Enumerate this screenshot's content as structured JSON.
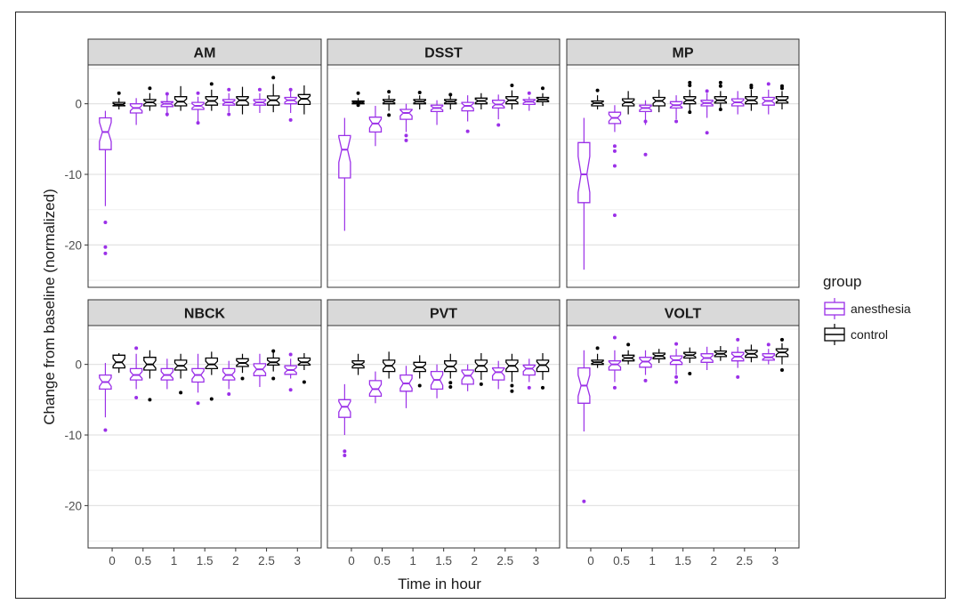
{
  "chart_data": {
    "type": "boxplot",
    "facets": [
      "AM",
      "DSST",
      "MP",
      "NBCK",
      "PVT",
      "VOLT"
    ],
    "x_categories": [
      "0",
      "0.5",
      "1",
      "1.5",
      "2",
      "2.5",
      "3"
    ],
    "xlabel": "Time in hour",
    "ylabel": "Change from baseline (normalized)",
    "y_ticks": [
      0,
      -10,
      -20
    ],
    "ylim": [
      -26,
      5.5
    ],
    "legend": {
      "title": "group",
      "entries": [
        {
          "label": "anesthesia",
          "color": "#9b30e8"
        },
        {
          "label": "control",
          "color": "#000000"
        }
      ]
    },
    "series_colors": {
      "anesthesia": "#9b30e8",
      "control": "#000000"
    },
    "panels": {
      "AM": {
        "anesthesia": [
          {
            "wl": -14.5,
            "q1": -6.5,
            "med": -4.0,
            "q3": -2.0,
            "wh": -1.0,
            "out": [
              -16.8,
              -20.3,
              -21.2
            ]
          },
          {
            "wl": -3.0,
            "q1": -1.3,
            "med": -0.6,
            "q3": 0.0,
            "wh": 0.8,
            "out": []
          },
          {
            "wl": -1.8,
            "q1": -0.4,
            "med": 0.0,
            "q3": 0.3,
            "wh": 1.2,
            "out": [
              -1.5,
              1.4
            ]
          },
          {
            "wl": -2.5,
            "q1": -0.8,
            "med": -0.3,
            "q3": 0.2,
            "wh": 1.0,
            "out": [
              -2.7,
              1.5
            ]
          },
          {
            "wl": -1.2,
            "q1": -0.2,
            "med": 0.2,
            "q3": 0.6,
            "wh": 1.5,
            "out": [
              -1.5,
              2.0
            ]
          },
          {
            "wl": -1.3,
            "q1": -0.2,
            "med": 0.2,
            "q3": 0.6,
            "wh": 1.5,
            "out": [
              2.0
            ]
          },
          {
            "wl": -1.3,
            "q1": 0.0,
            "med": 0.5,
            "q3": 0.9,
            "wh": 1.8,
            "out": [
              -2.3,
              2.0
            ]
          }
        ],
        "control": [
          {
            "wl": -0.8,
            "q1": -0.3,
            "med": -0.1,
            "q3": 0.2,
            "wh": 0.8,
            "out": [
              1.5
            ]
          },
          {
            "wl": -1.0,
            "q1": -0.3,
            "med": 0.2,
            "q3": 0.6,
            "wh": 1.5,
            "out": [
              2.2
            ]
          },
          {
            "wl": -1.0,
            "q1": -0.3,
            "med": 0.3,
            "q3": 1.0,
            "wh": 2.5,
            "out": []
          },
          {
            "wl": -1.0,
            "q1": -0.2,
            "med": 0.4,
            "q3": 1.0,
            "wh": 2.0,
            "out": [
              2.8
            ]
          },
          {
            "wl": -1.5,
            "q1": -0.2,
            "med": 0.5,
            "q3": 1.0,
            "wh": 2.4,
            "out": []
          },
          {
            "wl": -1.2,
            "q1": -0.2,
            "med": 0.5,
            "q3": 1.1,
            "wh": 2.8,
            "out": [
              3.7
            ]
          },
          {
            "wl": -1.5,
            "q1": -0.1,
            "med": 0.7,
            "q3": 1.3,
            "wh": 2.6,
            "out": []
          }
        ]
      },
      "DSST": {
        "anesthesia": [
          {
            "wl": -18.0,
            "q1": -10.5,
            "med": -6.5,
            "q3": -4.5,
            "wh": -2.0,
            "out": []
          },
          {
            "wl": -6.0,
            "q1": -4.0,
            "med": -2.8,
            "q3": -1.9,
            "wh": -0.3,
            "out": []
          },
          {
            "wl": -4.0,
            "q1": -2.2,
            "med": -1.3,
            "q3": -0.8,
            "wh": 0.0,
            "out": [
              -4.5,
              -5.2
            ]
          },
          {
            "wl": -3.0,
            "q1": -1.1,
            "med": -0.6,
            "q3": -0.2,
            "wh": 0.5,
            "out": []
          },
          {
            "wl": -2.5,
            "q1": -1.0,
            "med": -0.3,
            "q3": 0.2,
            "wh": 1.2,
            "out": [
              -3.9
            ]
          },
          {
            "wl": -2.2,
            "q1": -0.6,
            "med": -0.1,
            "q3": 0.5,
            "wh": 1.3,
            "out": [
              -3.0
            ]
          },
          {
            "wl": -1.0,
            "q1": -0.1,
            "med": 0.3,
            "q3": 0.6,
            "wh": 1.0,
            "out": [
              1.5
            ]
          }
        ],
        "control": [
          {
            "wl": -0.3,
            "q1": 0.0,
            "med": 0.2,
            "q3": 0.4,
            "wh": 0.8,
            "out": [
              1.5,
              -0.2
            ]
          },
          {
            "wl": -1.0,
            "q1": 0.0,
            "med": 0.3,
            "q3": 0.6,
            "wh": 1.2,
            "out": [
              1.7,
              -1.6
            ]
          },
          {
            "wl": -0.8,
            "q1": 0.0,
            "med": 0.3,
            "q3": 0.6,
            "wh": 1.2,
            "out": [
              1.6
            ]
          },
          {
            "wl": -0.8,
            "q1": 0.0,
            "med": 0.3,
            "q3": 0.6,
            "wh": 1.2,
            "out": [
              1.3
            ]
          },
          {
            "wl": -0.8,
            "q1": 0.0,
            "med": 0.4,
            "q3": 0.8,
            "wh": 1.5,
            "out": []
          },
          {
            "wl": -0.8,
            "q1": 0.0,
            "med": 0.5,
            "q3": 1.0,
            "wh": 1.9,
            "out": [
              2.6
            ]
          },
          {
            "wl": -0.3,
            "q1": 0.3,
            "med": 0.6,
            "q3": 0.9,
            "wh": 1.5,
            "out": [
              2.2
            ]
          }
        ]
      },
      "MP": {
        "anesthesia": [
          {
            "wl": -23.5,
            "q1": -14.0,
            "med": -10.0,
            "q3": -5.5,
            "wh": -2.0,
            "out": []
          },
          {
            "wl": -4.0,
            "q1": -2.8,
            "med": -2.0,
            "q3": -1.2,
            "wh": -0.2,
            "out": [
              -6.0,
              -6.7,
              -8.8,
              -15.8
            ]
          },
          {
            "wl": -3.0,
            "q1": -1.1,
            "med": -0.6,
            "q3": -0.2,
            "wh": 0.5,
            "out": [
              -2.5,
              -7.2
            ]
          },
          {
            "wl": -2.2,
            "q1": -0.6,
            "med": -0.2,
            "q3": 0.3,
            "wh": 1.2,
            "out": [
              -2.5
            ]
          },
          {
            "wl": -2.0,
            "q1": -0.3,
            "med": 0.1,
            "q3": 0.5,
            "wh": 1.5,
            "out": [
              -4.1,
              1.8
            ]
          },
          {
            "wl": -1.5,
            "q1": -0.3,
            "med": 0.2,
            "q3": 0.7,
            "wh": 1.8,
            "out": []
          },
          {
            "wl": -1.5,
            "q1": -0.2,
            "med": 0.4,
            "q3": 0.9,
            "wh": 2.0,
            "out": [
              2.8
            ]
          }
        ],
        "control": [
          {
            "wl": -0.8,
            "q1": -0.3,
            "med": 0.1,
            "q3": 0.4,
            "wh": 1.2,
            "out": [
              1.9
            ]
          },
          {
            "wl": -1.5,
            "q1": -0.3,
            "med": 0.2,
            "q3": 0.7,
            "wh": 1.8,
            "out": []
          },
          {
            "wl": -1.2,
            "q1": -0.3,
            "med": 0.4,
            "q3": 0.9,
            "wh": 2.0,
            "out": []
          },
          {
            "wl": -1.0,
            "q1": 0.0,
            "med": 0.5,
            "q3": 1.0,
            "wh": 2.0,
            "out": [
              2.6,
              3.0,
              -1.2
            ]
          },
          {
            "wl": -0.8,
            "q1": 0.1,
            "med": 0.5,
            "q3": 1.0,
            "wh": 1.8,
            "out": [
              2.5,
              3.0,
              -0.8
            ]
          },
          {
            "wl": -1.0,
            "q1": 0.0,
            "med": 0.5,
            "q3": 1.0,
            "wh": 2.0,
            "out": [
              2.3,
              2.6
            ]
          },
          {
            "wl": -0.8,
            "q1": 0.1,
            "med": 0.5,
            "q3": 1.0,
            "wh": 1.8,
            "out": [
              2.2,
              2.5
            ]
          }
        ]
      },
      "NBCK": {
        "anesthesia": [
          {
            "wl": -7.5,
            "q1": -3.5,
            "med": -2.5,
            "q3": -1.5,
            "wh": 0.2,
            "out": [
              -9.3
            ]
          },
          {
            "wl": -3.5,
            "q1": -2.2,
            "med": -1.5,
            "q3": -0.6,
            "wh": 1.5,
            "out": [
              2.3,
              -4.7
            ]
          },
          {
            "wl": -3.5,
            "q1": -2.2,
            "med": -1.5,
            "q3": -0.6,
            "wh": 0.8,
            "out": []
          },
          {
            "wl": -4.0,
            "q1": -2.5,
            "med": -1.5,
            "q3": -0.6,
            "wh": 1.5,
            "out": [
              -5.5
            ]
          },
          {
            "wl": -3.5,
            "q1": -2.2,
            "med": -1.5,
            "q3": -0.6,
            "wh": 0.5,
            "out": [
              -4.2
            ]
          },
          {
            "wl": -3.2,
            "q1": -1.6,
            "med": -0.7,
            "q3": 0.1,
            "wh": 1.5,
            "out": []
          },
          {
            "wl": -2.0,
            "q1": -1.4,
            "med": -0.8,
            "q3": -0.2,
            "wh": 0.8,
            "out": [
              -3.6,
              1.4
            ]
          }
        ],
        "control": [
          {
            "wl": -1.2,
            "q1": -0.5,
            "med": 0.3,
            "q3": 1.3,
            "wh": 1.6,
            "out": []
          },
          {
            "wl": -2.0,
            "q1": -0.8,
            "med": 0.0,
            "q3": 1.0,
            "wh": 2.0,
            "out": [
              -5.0
            ]
          },
          {
            "wl": -2.0,
            "q1": -0.8,
            "med": -0.2,
            "q3": 0.6,
            "wh": 1.5,
            "out": [
              -4.0
            ]
          },
          {
            "wl": -1.5,
            "q1": -0.6,
            "med": 0.0,
            "q3": 0.9,
            "wh": 1.8,
            "out": [
              -4.9
            ]
          },
          {
            "wl": -1.2,
            "q1": -0.3,
            "med": 0.2,
            "q3": 0.8,
            "wh": 1.5,
            "out": [
              -2.0
            ]
          },
          {
            "wl": -1.0,
            "q1": -0.1,
            "med": 0.3,
            "q3": 0.9,
            "wh": 1.7,
            "out": [
              1.9,
              -2.0
            ]
          },
          {
            "wl": -0.8,
            "q1": -0.1,
            "med": 0.3,
            "q3": 0.9,
            "wh": 1.6,
            "out": [
              -2.5
            ]
          }
        ]
      },
      "PVT": {
        "anesthesia": [
          {
            "wl": -10.0,
            "q1": -7.5,
            "med": -6.0,
            "q3": -5.0,
            "wh": -2.8,
            "out": [
              -12.3,
              -12.9
            ]
          },
          {
            "wl": -5.5,
            "q1": -4.5,
            "med": -3.5,
            "q3": -2.3,
            "wh": -1.0,
            "out": []
          },
          {
            "wl": -6.2,
            "q1": -3.8,
            "med": -2.7,
            "q3": -1.5,
            "wh": -0.2,
            "out": []
          },
          {
            "wl": -4.8,
            "q1": -3.5,
            "med": -2.2,
            "q3": -1.0,
            "wh": 0.0,
            "out": []
          },
          {
            "wl": -3.8,
            "q1": -2.8,
            "med": -1.6,
            "q3": -0.8,
            "wh": 0.0,
            "out": []
          },
          {
            "wl": -3.5,
            "q1": -2.2,
            "med": -1.1,
            "q3": -0.5,
            "wh": 0.5,
            "out": []
          },
          {
            "wl": -2.5,
            "q1": -1.5,
            "med": -0.6,
            "q3": -0.1,
            "wh": 0.8,
            "out": [
              -3.3
            ]
          }
        ],
        "control": [
          {
            "wl": -1.5,
            "q1": -0.5,
            "med": 0.0,
            "q3": 0.5,
            "wh": 1.5,
            "out": []
          },
          {
            "wl": -2.0,
            "q1": -1.0,
            "med": -0.2,
            "q3": 0.6,
            "wh": 1.8,
            "out": []
          },
          {
            "wl": -2.0,
            "q1": -1.0,
            "med": -0.4,
            "q3": 0.3,
            "wh": 1.3,
            "out": [
              -3.0
            ]
          },
          {
            "wl": -2.0,
            "q1": -1.0,
            "med": -0.3,
            "q3": 0.5,
            "wh": 1.5,
            "out": [
              -2.6,
              -3.2
            ]
          },
          {
            "wl": -2.2,
            "q1": -1.0,
            "med": -0.2,
            "q3": 0.6,
            "wh": 1.6,
            "out": [
              -2.8
            ]
          },
          {
            "wl": -2.5,
            "q1": -1.0,
            "med": -0.2,
            "q3": 0.6,
            "wh": 1.5,
            "out": [
              -3.0,
              -3.8
            ]
          },
          {
            "wl": -2.2,
            "q1": -1.0,
            "med": -0.1,
            "q3": 0.6,
            "wh": 1.6,
            "out": [
              -3.3
            ]
          }
        ]
      },
      "VOLT": {
        "anesthesia": [
          {
            "wl": -9.5,
            "q1": -5.5,
            "med": -3.0,
            "q3": -0.5,
            "wh": 2.0,
            "out": [
              -19.4
            ]
          },
          {
            "wl": -2.5,
            "q1": -0.8,
            "med": 0.0,
            "q3": 0.5,
            "wh": 2.0,
            "out": [
              3.8,
              -3.3
            ]
          },
          {
            "wl": -1.5,
            "q1": -0.4,
            "med": 0.4,
            "q3": 1.0,
            "wh": 2.0,
            "out": [
              -2.3
            ]
          },
          {
            "wl": -1.5,
            "q1": 0.0,
            "med": 0.6,
            "q3": 1.2,
            "wh": 2.2,
            "out": [
              -1.8,
              -2.5,
              2.9
            ]
          },
          {
            "wl": -0.8,
            "q1": 0.3,
            "med": 0.9,
            "q3": 1.5,
            "wh": 2.5,
            "out": []
          },
          {
            "wl": -0.5,
            "q1": 0.5,
            "med": 1.1,
            "q3": 1.7,
            "wh": 2.5,
            "out": [
              3.5,
              -1.8
            ]
          },
          {
            "wl": 0.0,
            "q1": 0.6,
            "med": 1.0,
            "q3": 1.5,
            "wh": 2.2,
            "out": [
              2.8
            ]
          }
        ],
        "control": [
          {
            "wl": -0.5,
            "q1": 0.0,
            "med": 0.3,
            "q3": 0.6,
            "wh": 1.5,
            "out": [
              2.3
            ]
          },
          {
            "wl": 0.0,
            "q1": 0.5,
            "med": 0.9,
            "q3": 1.3,
            "wh": 2.0,
            "out": [
              2.8
            ]
          },
          {
            "wl": 0.2,
            "q1": 0.8,
            "med": 1.2,
            "q3": 1.6,
            "wh": 2.2,
            "out": []
          },
          {
            "wl": 0.2,
            "q1": 0.9,
            "med": 1.3,
            "q3": 1.7,
            "wh": 2.4,
            "out": [
              -1.3
            ]
          },
          {
            "wl": 0.5,
            "q1": 1.1,
            "med": 1.5,
            "q3": 1.9,
            "wh": 2.6,
            "out": []
          },
          {
            "wl": 0.3,
            "q1": 1.0,
            "med": 1.5,
            "q3": 2.0,
            "wh": 2.8,
            "out": []
          },
          {
            "wl": 0.0,
            "q1": 1.1,
            "med": 1.7,
            "q3": 2.2,
            "wh": 3.0,
            "out": [
              3.5,
              -0.8
            ]
          }
        ]
      }
    }
  }
}
